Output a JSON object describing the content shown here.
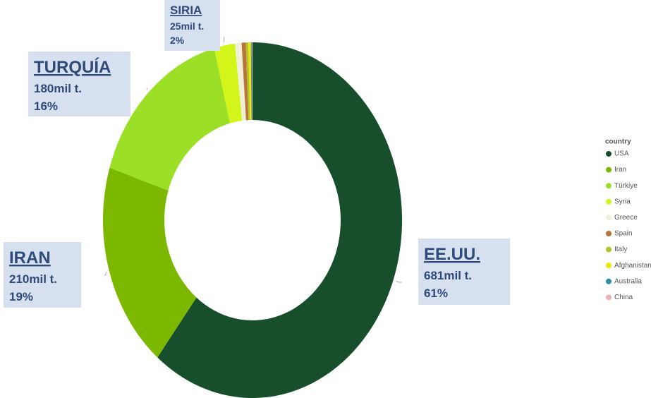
{
  "chart_data": {
    "type": "donut",
    "categories": [
      "USA",
      "Iran",
      "Türkiye",
      "Syria",
      "Greece",
      "Spain",
      "Italy",
      "Afghanistan",
      "Australia",
      "China"
    ],
    "values": [
      681,
      210,
      180,
      25,
      8,
      5,
      3,
      3,
      1,
      1
    ],
    "colors": [
      "#174f2c",
      "#7cb800",
      "#9be026",
      "#d4f51a",
      "#f0f0d8",
      "#b8743a",
      "#b4c02c",
      "#e8e800",
      "#2f8fa8",
      "#e8b0b0"
    ],
    "label_names": [
      "EE.UU.",
      "IRAN",
      "TURQUÍA",
      "SIRIA",
      null,
      null,
      null,
      null,
      null,
      null
    ],
    "value_labels": [
      "681mil t.",
      "210mil t.",
      "180mil t.",
      "25mil t.",
      null,
      null,
      null,
      null,
      null,
      null
    ],
    "percent_labels": [
      "61%",
      "19%",
      "16%",
      "2%",
      null,
      null,
      null,
      null,
      null,
      null
    ],
    "legend_title": "country",
    "legend": "right"
  }
}
